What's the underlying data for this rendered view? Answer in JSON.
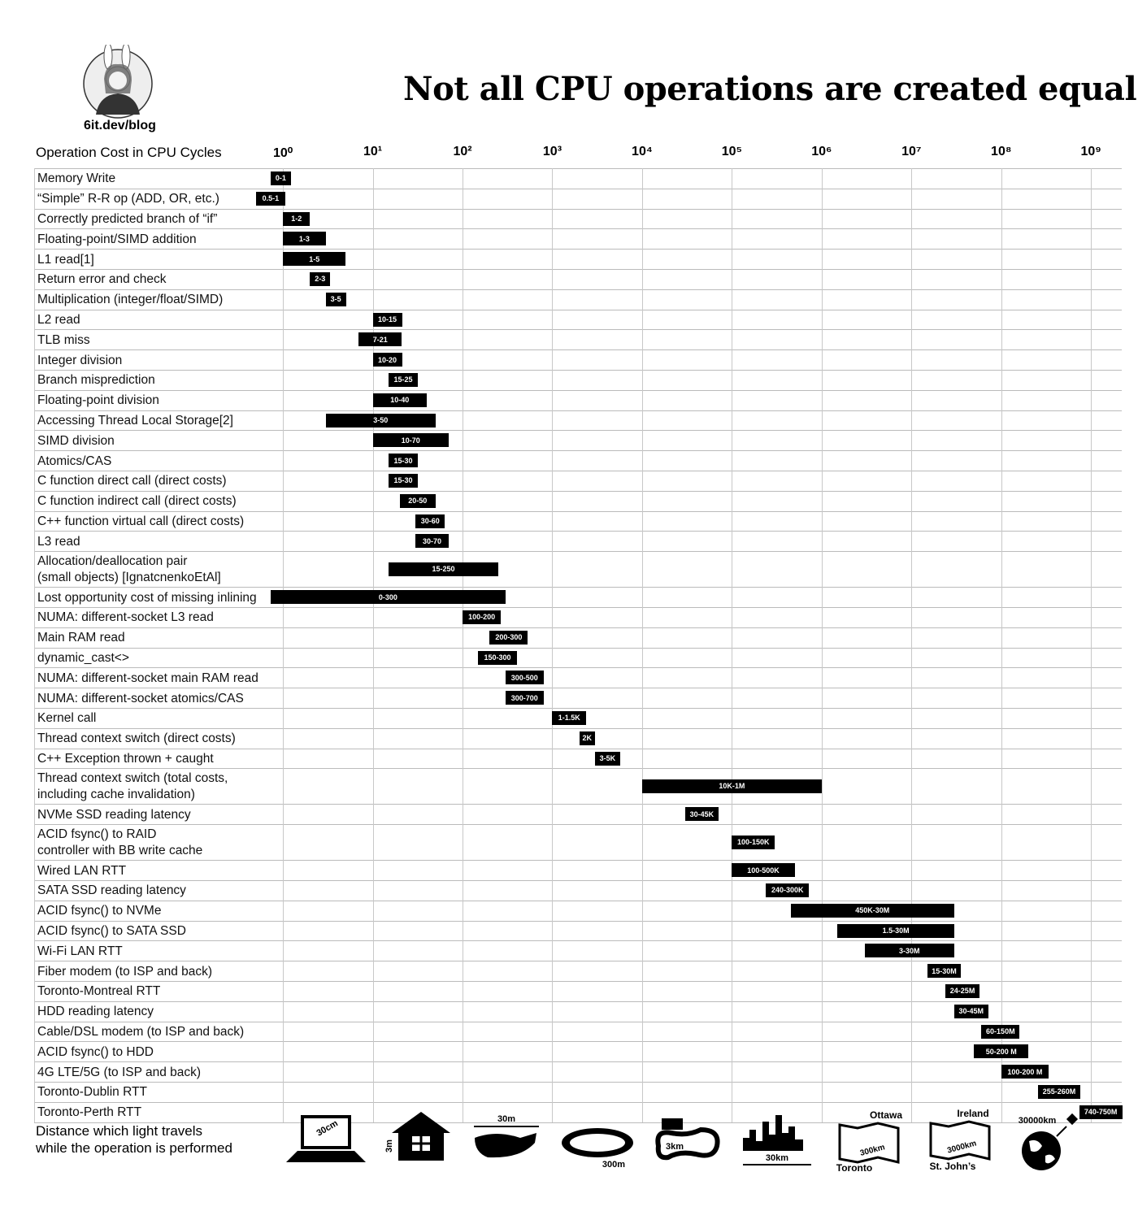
{
  "chart_data": {
    "type": "range-bar",
    "title": "Not all CPU operations are created equal",
    "site": "6it.dev/blog",
    "axis_label": "Operation Cost in CPU Cycles",
    "log_scale": true,
    "grid": true,
    "color": "#000000",
    "xlim": [
      0.73,
      2200000000
    ],
    "xticks": [
      {
        "value": 1,
        "label": "10⁰"
      },
      {
        "value": 10,
        "label": "10¹"
      },
      {
        "value": 100,
        "label": "10²"
      },
      {
        "value": 1000,
        "label": "10³"
      },
      {
        "value": 10000,
        "label": "10⁴"
      },
      {
        "value": 100000,
        "label": "10⁵"
      },
      {
        "value": 1000000,
        "label": "10⁶"
      },
      {
        "value": 10000000,
        "label": "10⁷"
      },
      {
        "value": 100000000,
        "label": "10⁸"
      },
      {
        "value": 1000000000,
        "label": "10⁹"
      }
    ],
    "categories": [
      "Memory Write",
      "“Simple” R-R op (ADD, OR, etc.)",
      "Correctly predicted branch of “if”",
      "Floating-point/SIMD addition",
      "L1 read[1]",
      "Return error and check",
      "Multiplication (integer/float/SIMD)",
      "L2 read",
      "TLB miss",
      "Integer division",
      "Branch misprediction",
      "Floating-point division",
      "Accessing Thread Local Storage[2]",
      "SIMD division",
      "Atomics/CAS",
      "C function direct call (direct costs)",
      "C function indirect call (direct costs)",
      "C++ function virtual call (direct costs)",
      "L3 read",
      "Allocation/deallocation pair\n(small objects) [IgnatcnenkoEtAl]",
      "Lost opportunity cost of missing inlining",
      "NUMA: different-socket L3 read",
      "Main RAM read",
      "dynamic_cast<>",
      "NUMA: different-socket main RAM read",
      "NUMA: different-socket atomics/CAS",
      "Kernel call",
      "Thread context switch (direct costs)",
      "C++ Exception thrown + caught",
      "Thread context switch (total costs,\nincluding cache invalidation)",
      "NVMe SSD reading latency",
      "ACID fsync() to RAID\ncontroller with BB write cache",
      "Wired LAN RTT",
      "SATA SSD reading latency",
      "ACID fsync() to NVMe",
      "ACID fsync() to SATA SSD",
      "Wi-Fi LAN RTT",
      "Fiber modem (to ISP and back)",
      "Toronto-Montreal RTT",
      "HDD reading latency",
      "Cable/DSL modem (to ISP and back)",
      "ACID fsync() to HDD",
      "4G LTE/5G (to ISP and back)",
      "Toronto-Dublin RTT",
      "Toronto-Perth RTT"
    ],
    "low": [
      0,
      0.5,
      1,
      1,
      1,
      2,
      3,
      10,
      7,
      10,
      15,
      10,
      3,
      10,
      15,
      15,
      20,
      30,
      30,
      15,
      0,
      100,
      200,
      150,
      300,
      300,
      1000,
      2000,
      3000,
      10000,
      30000,
      100000,
      100000,
      240000,
      450000,
      1500000,
      3000000,
      15000000,
      24000000,
      30000000,
      60000000,
      50000000,
      100000000,
      255000000,
      740000000
    ],
    "high": [
      1,
      1,
      2,
      3,
      5,
      3,
      5,
      15,
      21,
      20,
      25,
      40,
      50,
      70,
      30,
      30,
      50,
      60,
      70,
      250,
      300,
      200,
      300,
      300,
      500,
      700,
      1500,
      2000,
      5000,
      1000000,
      45000,
      150000,
      500000,
      300000,
      30000000,
      30000000,
      30000000,
      30000000,
      25000000,
      45000000,
      150000000,
      200000000,
      200000000,
      260000000,
      750000000
    ],
    "value_labels": [
      "0-1",
      "0.5-1",
      "1-2",
      "1-3",
      "1-5",
      "2-3",
      "3-5",
      "10-15",
      "7-21",
      "10-20",
      "15-25",
      "10-40",
      "3-50",
      "10-70",
      "15-30",
      "15-30",
      "20-50",
      "30-60",
      "30-70",
      "15-250",
      "0-300",
      "100-200",
      "200-300",
      "150-300",
      "300-500",
      "300-700",
      "1-1.5K",
      "2K",
      "3-5K",
      "10K-1M",
      "30-45K",
      "100-150K",
      "100-500K",
      "240-300K",
      "450K-30M",
      "1.5-30M",
      "3-30M",
      "15-30M",
      "24-25M",
      "30-45M",
      "60-150M",
      "50-200 M",
      "100-200 M",
      "255-260M",
      "740-750M"
    ]
  },
  "footer": {
    "caption": "Distance which light travels\nwhile the operation is performed",
    "labels": [
      "30cm",
      "3m",
      "30m",
      "300m",
      "3km",
      "30km",
      "Ottawa",
      "300km",
      "Toronto",
      "Ireland",
      "3000km",
      "St. John’s",
      "30000km"
    ]
  }
}
